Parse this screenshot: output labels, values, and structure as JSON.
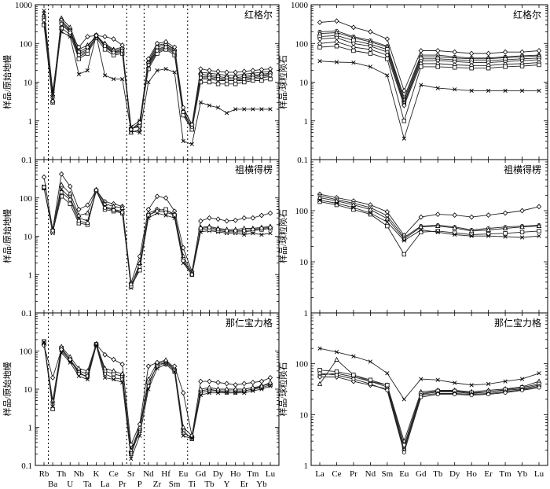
{
  "chart_data": [
    {
      "type": "line",
      "panel": "spider-top",
      "title": "红格尔",
      "ylabel": "样品/原始地幔",
      "yscale": "log",
      "ylim": [
        0.1,
        1000
      ],
      "yticks": [
        "0.1",
        "1",
        "10",
        "100",
        "1000"
      ],
      "categories": [
        "Rb",
        "Ba",
        "Th",
        "U",
        "Nb",
        "Ta",
        "K",
        "La",
        "Ce",
        "Pr",
        "Sr",
        "P",
        "Nd",
        "Zr",
        "Hf",
        "Sm",
        "Eu",
        "Ti",
        "Gd",
        "Tb",
        "Dy",
        "Y",
        "Ho",
        "Er",
        "Tm",
        "Yb",
        "Lu"
      ],
      "reference_lines_after": [
        "Rb",
        "Pr",
        "P",
        "Eu"
      ],
      "series": [
        {
          "marker": "o",
          "values": [
            420,
            4,
            380,
            230,
            55,
            70,
            150,
            90,
            60,
            70,
            0.6,
            0.8,
            30,
            70,
            85,
            65,
            1.6,
            0.7,
            14,
            14,
            13,
            12,
            12,
            13,
            14,
            15,
            16
          ]
        },
        {
          "marker": "x",
          "values": [
            600,
            5,
            300,
            200,
            45,
            60,
            160,
            80,
            55,
            60,
            0.7,
            1.0,
            25,
            60,
            75,
            55,
            2.0,
            0.8,
            12,
            12,
            11,
            11,
            11,
            11,
            12,
            13,
            14
          ]
        },
        {
          "marker": "tri",
          "values": [
            350,
            3.5,
            450,
            260,
            70,
            90,
            150,
            100,
            70,
            80,
            0.5,
            0.6,
            35,
            90,
            100,
            70,
            1.5,
            0.6,
            18,
            17,
            16,
            15,
            15,
            16,
            17,
            18,
            19
          ]
        },
        {
          "marker": "d",
          "values": [
            500,
            4.5,
            400,
            220,
            60,
            80,
            165,
            95,
            65,
            75,
            0.65,
            0.7,
            32,
            80,
            95,
            68,
            1.8,
            0.65,
            16,
            15,
            14,
            13,
            13,
            14,
            15,
            16,
            17
          ]
        },
        {
          "marker": "s",
          "values": [
            300,
            3,
            250,
            170,
            40,
            55,
            140,
            70,
            50,
            55,
            0.6,
            0.9,
            22,
            55,
            70,
            50,
            1.4,
            0.6,
            10,
            10,
            9,
            9,
            9,
            10,
            11,
            11,
            12
          ]
        },
        {
          "marker": "o",
          "values": [
            450,
            4,
            350,
            210,
            50,
            65,
            155,
            85,
            58,
            65,
            0.62,
            0.75,
            28,
            65,
            80,
            60,
            1.7,
            0.7,
            13,
            13,
            12,
            11,
            11,
            12,
            13,
            14,
            15
          ]
        },
        {
          "marker": "x",
          "values": [
            700,
            6,
            200,
            150,
            16,
            20,
            160,
            15,
            12,
            12,
            0.55,
            0.5,
            10,
            20,
            22,
            18,
            0.3,
            0.25,
            3,
            2.5,
            2.2,
            1.6,
            2,
            2,
            2,
            2,
            2
          ]
        },
        {
          "marker": "d",
          "values": [
            400,
            3.2,
            320,
            190,
            80,
            150,
            160,
            150,
            130,
            90,
            0.6,
            0.9,
            40,
            100,
            110,
            80,
            2.2,
            0.8,
            22,
            20,
            19,
            18,
            18,
            19,
            20,
            21,
            22
          ]
        }
      ]
    },
    {
      "type": "line",
      "panel": "spider-middle",
      "title": "祖横得楞",
      "ylabel": "样品/原始地幔",
      "yscale": "log",
      "ylim": [
        0.1,
        1000
      ],
      "yticks": [
        "0.1",
        "1",
        "10",
        "100"
      ],
      "categories": [
        "Rb",
        "Ba",
        "Th",
        "U",
        "Nb",
        "Ta",
        "K",
        "La",
        "Ce",
        "Pr",
        "Sr",
        "P",
        "Nd",
        "Zr",
        "Hf",
        "Sm",
        "Eu",
        "Ti",
        "Gd",
        "Tb",
        "Dy",
        "Y",
        "Ho",
        "Er",
        "Tm",
        "Yb",
        "Lu"
      ],
      "reference_lines_after": [
        "Rb",
        "Pr",
        "P",
        "Eu"
      ],
      "series": [
        {
          "marker": "d",
          "values": [
            350,
            15,
            420,
            200,
            50,
            65,
            160,
            80,
            70,
            60,
            0.6,
            3,
            50,
            110,
            100,
            45,
            5,
            1.2,
            25,
            30,
            28,
            25,
            26,
            30,
            30,
            35,
            40
          ]
        },
        {
          "marker": "x",
          "values": [
            200,
            12,
            170,
            100,
            30,
            25,
            150,
            60,
            50,
            45,
            0.45,
            1.5,
            30,
            40,
            35,
            30,
            2,
            1.0,
            13,
            14,
            13,
            12,
            12,
            11,
            12,
            11,
            12
          ]
        },
        {
          "marker": "tri",
          "values": [
            180,
            14,
            220,
            130,
            35,
            40,
            165,
            70,
            60,
            55,
            0.5,
            2.0,
            40,
            50,
            48,
            38,
            3,
            1.1,
            17,
            18,
            16,
            15,
            15,
            16,
            16,
            17,
            18
          ]
        },
        {
          "marker": "s",
          "values": [
            190,
            13,
            110,
            70,
            22,
            20,
            155,
            50,
            45,
            40,
            0.5,
            1.3,
            35,
            48,
            50,
            35,
            2.5,
            1.0,
            15,
            15,
            14,
            13,
            13,
            13,
            14,
            15,
            16
          ]
        },
        {
          "marker": "o",
          "values": [
            190,
            14,
            140,
            90,
            25,
            22,
            160,
            55,
            48,
            42,
            0.55,
            1.6,
            36,
            45,
            42,
            36,
            2.3,
            1.0,
            16,
            17,
            15,
            14,
            14,
            14,
            15,
            16,
            17
          ]
        }
      ]
    },
    {
      "type": "line",
      "panel": "spider-bottom",
      "title": "那仁宝力格",
      "ylabel": "样品/原始地幔",
      "yscale": "log",
      "ylim": [
        0.1,
        1000
      ],
      "yticks": [
        "0.1",
        "1",
        "10",
        "100"
      ],
      "categories": [
        "Rb",
        "Ba",
        "Th",
        "U",
        "Nb",
        "Ta",
        "K",
        "La",
        "Ce",
        "Pr",
        "Sr",
        "P",
        "Nd",
        "Zr",
        "Hf",
        "Sm",
        "Eu",
        "Ti",
        "Gd",
        "Tb",
        "Dy",
        "Y",
        "Ho",
        "Er",
        "Tm",
        "Yb",
        "Lu"
      ],
      "reference_lines_after": [
        "Rb",
        "Pr",
        "P",
        "Eu"
      ],
      "series": [
        {
          "marker": "s",
          "values": [
            180,
            3,
            120,
            60,
            30,
            25,
            150,
            30,
            25,
            22,
            0.2,
            0.8,
            15,
            40,
            50,
            30,
            0.8,
            0.5,
            8,
            9,
            9,
            9,
            9,
            9,
            10,
            11,
            13
          ]
        },
        {
          "marker": "o",
          "values": [
            150,
            4,
            100,
            55,
            28,
            20,
            145,
            25,
            20,
            18,
            0.22,
            0.9,
            12,
            45,
            55,
            32,
            0.7,
            0.55,
            9,
            10,
            9,
            8,
            8,
            9,
            10,
            12,
            14
          ]
        },
        {
          "marker": "tri",
          "values": [
            160,
            5,
            130,
            70,
            35,
            30,
            155,
            35,
            30,
            25,
            0.25,
            1.0,
            18,
            50,
            58,
            36,
            1.0,
            0.6,
            10,
            11,
            10,
            10,
            10,
            10,
            11,
            12,
            15
          ]
        },
        {
          "marker": "d",
          "values": [
            140,
            20,
            110,
            60,
            25,
            22,
            150,
            80,
            60,
            45,
            0.35,
            1.2,
            40,
            50,
            45,
            40,
            8,
            0.6,
            16,
            16,
            15,
            14,
            13,
            14,
            15,
            16,
            20
          ]
        },
        {
          "marker": "x",
          "values": [
            170,
            3.5,
            90,
            50,
            22,
            18,
            140,
            20,
            18,
            15,
            0.15,
            0.6,
            10,
            35,
            45,
            28,
            0.6,
            0.5,
            7,
            8,
            8,
            8,
            8,
            8,
            9,
            10,
            12
          ]
        }
      ]
    },
    {
      "type": "line",
      "panel": "ree-top",
      "title": "红格尔",
      "ylabel": "样品/球粒陨石",
      "yscale": "log",
      "ylim": [
        0.1,
        1000
      ],
      "yticks": [
        "0.1",
        "1",
        "10",
        "100",
        "1000"
      ],
      "categories": [
        "La",
        "Ce",
        "Pr",
        "Nd",
        "Sm",
        "Eu",
        "Gd",
        "Tb",
        "Dy",
        "Ho",
        "Er",
        "Tm",
        "Yb",
        "Lu"
      ],
      "series": [
        {
          "marker": "d",
          "values": [
            350,
            380,
            260,
            200,
            130,
            6,
            65,
            65,
            60,
            55,
            55,
            60,
            60,
            65
          ]
        },
        {
          "marker": "o",
          "values": [
            200,
            210,
            150,
            120,
            85,
            4,
            50,
            50,
            45,
            42,
            42,
            45,
            48,
            50
          ]
        },
        {
          "marker": "tri",
          "values": [
            180,
            190,
            140,
            110,
            80,
            3.5,
            45,
            45,
            42,
            40,
            40,
            43,
            45,
            48
          ]
        },
        {
          "marker": "s",
          "values": [
            150,
            160,
            120,
            95,
            70,
            3,
            40,
            40,
            38,
            36,
            36,
            38,
            40,
            42
          ]
        },
        {
          "marker": "o",
          "values": [
            130,
            140,
            100,
            85,
            60,
            2.8,
            35,
            36,
            34,
            32,
            32,
            34,
            36,
            38
          ]
        },
        {
          "marker": "d",
          "values": [
            100,
            110,
            80,
            70,
            50,
            2.5,
            30,
            30,
            28,
            27,
            27,
            29,
            30,
            32
          ]
        },
        {
          "marker": "x",
          "values": [
            35,
            33,
            32,
            25,
            15,
            0.35,
            8.5,
            7,
            6.5,
            6,
            6,
            6,
            6,
            6
          ]
        },
        {
          "marker": "s",
          "values": [
            80,
            85,
            65,
            55,
            40,
            1,
            25,
            25,
            24,
            23,
            23,
            25,
            26,
            28
          ]
        }
      ]
    },
    {
      "type": "line",
      "panel": "ree-middle",
      "title": "祖横得楞",
      "ylabel": "样品/球粒陨石",
      "yscale": "log",
      "ylim": [
        1,
        1000
      ],
      "yticks": [
        "1",
        "10",
        "100"
      ],
      "categories": [
        "La",
        "Ce",
        "Pr",
        "Nd",
        "Sm",
        "Eu",
        "Gd",
        "Tb",
        "Dy",
        "Ho",
        "Er",
        "Tm",
        "Yb",
        "Lu"
      ],
      "series": [
        {
          "marker": "d",
          "values": [
            210,
            180,
            155,
            130,
            95,
            33,
            75,
            85,
            82,
            75,
            82,
            90,
            100,
            120
          ]
        },
        {
          "marker": "o",
          "values": [
            195,
            165,
            140,
            115,
            80,
            30,
            50,
            52,
            48,
            42,
            45,
            48,
            50,
            52
          ]
        },
        {
          "marker": "tri",
          "values": [
            180,
            155,
            130,
            105,
            70,
            28,
            48,
            50,
            46,
            40,
            42,
            45,
            48,
            50
          ]
        },
        {
          "marker": "s",
          "values": [
            150,
            130,
            105,
            85,
            50,
            14,
            38,
            40,
            37,
            34,
            35,
            36,
            38,
            40
          ]
        },
        {
          "marker": "x",
          "values": [
            160,
            140,
            115,
            90,
            60,
            26,
            42,
            38,
            34,
            32,
            32,
            31,
            30,
            32
          ]
        }
      ]
    },
    {
      "type": "line",
      "panel": "ree-bottom",
      "title": "那仁宝力格",
      "ylabel": "样品/球粒陨石",
      "yscale": "log",
      "ylim": [
        1,
        1000
      ],
      "yticks": [
        "1",
        "10",
        "100"
      ],
      "categories": [
        "La",
        "Ce",
        "Pr",
        "Nd",
        "Sm",
        "Eu",
        "Gd",
        "Tb",
        "Dy",
        "Ho",
        "Er",
        "Tm",
        "Yb",
        "Lu"
      ],
      "series": [
        {
          "marker": "x",
          "values": [
            200,
            170,
            140,
            110,
            65,
            20,
            50,
            48,
            42,
            38,
            40,
            45,
            50,
            65
          ]
        },
        {
          "marker": "tri",
          "values": [
            40,
            120,
            60,
            45,
            38,
            3,
            28,
            30,
            30,
            28,
            30,
            32,
            35,
            45
          ]
        },
        {
          "marker": "o",
          "values": [
            60,
            65,
            55,
            45,
            35,
            2.2,
            25,
            28,
            28,
            26,
            28,
            30,
            32,
            38
          ]
        },
        {
          "marker": "s",
          "values": [
            75,
            70,
            60,
            48,
            38,
            2.5,
            26,
            29,
            29,
            27,
            28,
            31,
            34,
            40
          ]
        },
        {
          "marker": "d",
          "values": [
            55,
            55,
            45,
            38,
            32,
            2,
            24,
            26,
            26,
            25,
            26,
            28,
            31,
            36
          ]
        },
        {
          "marker": "o",
          "values": [
            65,
            60,
            50,
            40,
            30,
            1.8,
            22,
            25,
            25,
            24,
            25,
            27,
            30,
            34
          ]
        }
      ]
    }
  ]
}
